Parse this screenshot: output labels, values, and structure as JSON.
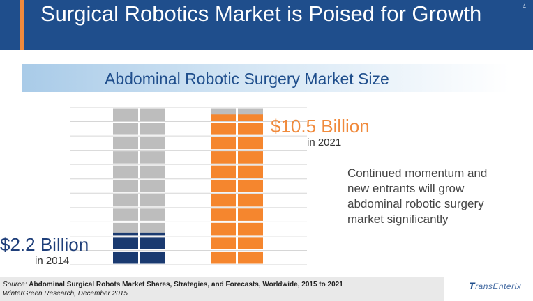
{
  "header": {
    "title": "Surgical Robotics Market is Poised for Growth",
    "page_number": "4"
  },
  "subtitle": "Abdominal Robotic Surgery Market Size",
  "annotations": {
    "value_2021": "$10.5 Billion",
    "year_2021": "in 2021",
    "value_2014": "$2.2 Billion",
    "year_2014": "in 2014"
  },
  "note": "Continued momentum and new entrants will grow abdominal robotic surgery market significantly",
  "source": {
    "label": "Source:",
    "title": "Abdominal Surgical Robots Market Shares, Strategies, and Forecasts, Worldwide, 2015 to 2021",
    "publisher": "WinterGreen Research, December 2015"
  },
  "logo": {
    "mark": "T",
    "text": "ransEnterix"
  },
  "chart_data": {
    "type": "bar",
    "title": "Abdominal Robotic Surgery Market Size",
    "categories": [
      "2014",
      "2021"
    ],
    "values": [
      2.2,
      10.5
    ],
    "unit": "Billion USD",
    "ylim": [
      0,
      11
    ],
    "grid": true,
    "legend": "none",
    "colors": {
      "bar_2014": "#1a3a70",
      "bar_2021": "#f5862e",
      "empty": "#bdbdbd"
    }
  }
}
